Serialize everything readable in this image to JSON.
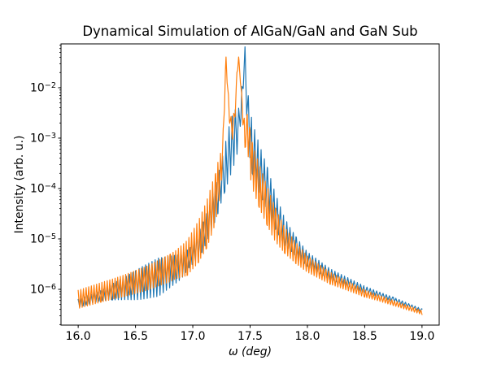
{
  "chart_data": {
    "type": "line",
    "title": "Dynamical Simulation of AlGaN/GaN and GaN Sub",
    "xlabel": "ω (deg)",
    "ylabel": "Intensity (arb. u.)",
    "x_range_deg": [
      16.0,
      19.0
    ],
    "xlim": [
      15.85,
      19.15
    ],
    "ylog_lim": [
      -6.71,
      -1.13
    ],
    "grid": false,
    "legend": "none",
    "x_ticks": [
      16.0,
      16.5,
      17.0,
      17.5,
      18.0,
      18.5,
      19.0
    ],
    "x_tick_labels": [
      "16.0",
      "16.5",
      "17.0",
      "17.5",
      "18.0",
      "18.5",
      "19.0"
    ],
    "y_ticks": [
      {
        "v": -2,
        "base": "10",
        "exp": "−2",
        "label": "10⁻²"
      },
      {
        "v": -3,
        "base": "10",
        "exp": "−3",
        "label": "10⁻³"
      },
      {
        "v": -4,
        "base": "10",
        "exp": "−4",
        "label": "10⁻⁴"
      },
      {
        "v": -5,
        "base": "10",
        "exp": "−5",
        "label": "10⁻⁵"
      },
      {
        "v": -6,
        "base": "10",
        "exp": "−6",
        "label": "10⁻⁶"
      }
    ],
    "series": [
      {
        "name": "GaN Sub",
        "color": "#1f77b4",
        "fringe_period_deg": 0.028,
        "peaks": [
          {
            "omega_deg": 17.455,
            "intensity": 0.045
          }
        ],
        "envelope_log10": [
          [
            16.0,
            -6.28
          ],
          [
            16.1,
            -6.2
          ],
          [
            16.3,
            -6.05
          ],
          [
            16.5,
            -5.92
          ],
          [
            16.7,
            -5.76
          ],
          [
            16.9,
            -5.55
          ],
          [
            17.0,
            -5.3
          ],
          [
            17.08,
            -5.0
          ],
          [
            17.15,
            -4.62
          ],
          [
            17.22,
            -4.12
          ],
          [
            17.28,
            -3.6
          ],
          [
            17.33,
            -3.18
          ],
          [
            17.37,
            -2.95
          ],
          [
            17.4,
            -2.78
          ],
          [
            17.42,
            -2.35
          ],
          [
            17.44,
            -1.9
          ],
          [
            17.455,
            -1.35
          ],
          [
            17.47,
            -2.05
          ],
          [
            17.485,
            -2.7
          ],
          [
            17.52,
            -3.2
          ],
          [
            17.58,
            -3.6
          ],
          [
            17.65,
            -4.0
          ],
          [
            17.72,
            -4.45
          ],
          [
            17.8,
            -4.85
          ],
          [
            17.9,
            -5.15
          ],
          [
            18.0,
            -5.4
          ],
          [
            18.2,
            -5.7
          ],
          [
            18.5,
            -6.0
          ],
          [
            18.75,
            -6.2
          ],
          [
            19.0,
            -6.42
          ]
        ],
        "fringe_amp_log10": [
          [
            16.0,
            0.08
          ],
          [
            16.2,
            0.1
          ],
          [
            16.4,
            0.22
          ],
          [
            16.55,
            0.32
          ],
          [
            16.7,
            0.38
          ],
          [
            16.85,
            0.28
          ],
          [
            16.98,
            0.18
          ],
          [
            17.05,
            0.25
          ],
          [
            17.15,
            0.3
          ],
          [
            17.25,
            0.4
          ],
          [
            17.33,
            0.55
          ],
          [
            17.38,
            0.5
          ],
          [
            17.42,
            0.25
          ],
          [
            17.45,
            0.05
          ],
          [
            17.47,
            0.5
          ],
          [
            17.55,
            0.5
          ],
          [
            17.65,
            0.42
          ],
          [
            17.75,
            0.32
          ],
          [
            17.85,
            0.22
          ],
          [
            18.0,
            0.14
          ],
          [
            18.3,
            0.09
          ],
          [
            18.6,
            0.05
          ],
          [
            19.0,
            0.03
          ]
        ]
      },
      {
        "name": "AlGaN/GaN",
        "color": "#ff7f0e",
        "fringe_period_deg": 0.023,
        "peaks": [
          {
            "omega_deg": 17.29,
            "intensity": 0.038
          },
          {
            "omega_deg": 17.4,
            "intensity": 0.038
          }
        ],
        "envelope_log10": [
          [
            16.0,
            -6.2
          ],
          [
            16.2,
            -6.06
          ],
          [
            16.4,
            -5.93
          ],
          [
            16.6,
            -5.78
          ],
          [
            16.8,
            -5.58
          ],
          [
            16.95,
            -5.38
          ],
          [
            17.05,
            -5.05
          ],
          [
            17.12,
            -4.72
          ],
          [
            17.2,
            -4.18
          ],
          [
            17.25,
            -3.55
          ],
          [
            17.27,
            -2.8
          ],
          [
            17.285,
            -1.7
          ],
          [
            17.29,
            -1.42
          ],
          [
            17.3,
            -1.85
          ],
          [
            17.32,
            -2.55
          ],
          [
            17.345,
            -2.85
          ],
          [
            17.37,
            -2.45
          ],
          [
            17.385,
            -1.75
          ],
          [
            17.4,
            -1.42
          ],
          [
            17.415,
            -1.8
          ],
          [
            17.43,
            -2.4
          ],
          [
            17.455,
            -2.95
          ],
          [
            17.475,
            -2.85
          ],
          [
            17.5,
            -3.3
          ],
          [
            17.52,
            -3.55
          ],
          [
            17.58,
            -3.95
          ],
          [
            17.65,
            -4.35
          ],
          [
            17.72,
            -4.72
          ],
          [
            17.8,
            -5.02
          ],
          [
            17.9,
            -5.28
          ],
          [
            18.0,
            -5.5
          ],
          [
            18.2,
            -5.78
          ],
          [
            18.5,
            -6.08
          ],
          [
            18.75,
            -6.27
          ],
          [
            19.0,
            -6.46
          ]
        ],
        "fringe_amp_log10": [
          [
            16.0,
            0.18
          ],
          [
            16.3,
            0.2
          ],
          [
            16.6,
            0.24
          ],
          [
            16.85,
            0.28
          ],
          [
            17.0,
            0.38
          ],
          [
            17.1,
            0.45
          ],
          [
            17.18,
            0.5
          ],
          [
            17.23,
            0.45
          ],
          [
            17.26,
            0.2
          ],
          [
            17.29,
            0.03
          ],
          [
            17.32,
            0.12
          ],
          [
            17.35,
            0.18
          ],
          [
            17.38,
            0.06
          ],
          [
            17.4,
            0.03
          ],
          [
            17.43,
            0.15
          ],
          [
            17.46,
            0.25
          ],
          [
            17.5,
            0.45
          ],
          [
            17.6,
            0.42
          ],
          [
            17.7,
            0.35
          ],
          [
            17.8,
            0.26
          ],
          [
            18.0,
            0.16
          ],
          [
            18.3,
            0.1
          ],
          [
            18.6,
            0.06
          ],
          [
            19.0,
            0.04
          ]
        ]
      }
    ]
  }
}
